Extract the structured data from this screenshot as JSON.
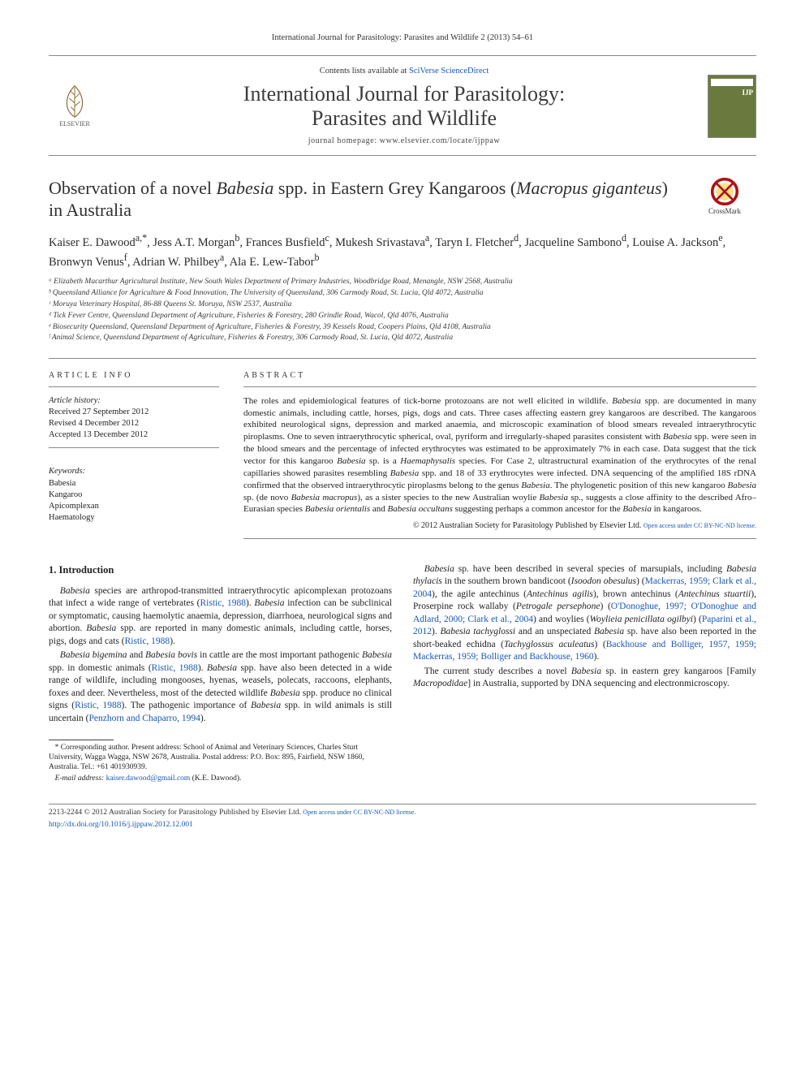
{
  "citation": "International Journal for Parasitology: Parasites and Wildlife 2 (2013) 54–61",
  "masthead": {
    "contents_prefix": "Contents lists available at ",
    "contents_link": "SciVerse ScienceDirect",
    "journal_name_line1": "International Journal for Parasitology:",
    "journal_name_line2": "Parasites and Wildlife",
    "homepage_prefix": "journal homepage: ",
    "homepage_url": "www.elsevier.com/locate/ijppaw",
    "publisher_label": "ELSEVIER",
    "cover_label": "IJP"
  },
  "crossmark_label": "CrossMark",
  "title": {
    "pre": "Observation of a novel ",
    "ital1": "Babesia",
    "mid": " spp. in Eastern Grey Kangaroos (",
    "ital2": "Macropus giganteus",
    "post": ") in Australia"
  },
  "authors_html": "Kaiser E. Dawood<sup>a,*</sup>, Jess A.T. Morgan<sup>b</sup>, Frances Busfield<sup>c</sup>, Mukesh Srivastava<sup>a</sup>, Taryn I. Fletcher<sup>d</sup>, Jacqueline Sambono<sup>d</sup>, Louise A. Jackson<sup>e</sup>, Bronwyn Venus<sup>f</sup>, Adrian W. Philbey<sup>a</sup>, Ala E. Lew-Tabor<sup>b</sup>",
  "affiliations": [
    "ᵃ Elizabeth Macarthur Agricultural Institute, New South Wales Department of Primary Industries, Woodbridge Road, Menangle, NSW 2568, Australia",
    "ᵇ Queensland Alliance for Agriculture & Food Innovation, The University of Queensland, 306 Carmody Road, St. Lucia, Qld 4072, Australia",
    "ᶜ Moruya Veterinary Hospital, 86-88 Queens St. Moruya, NSW 2537, Australia",
    "ᵈ Tick Fever Centre, Queensland Department of Agriculture, Fisheries & Forestry, 280 Grindle Road, Wacol, Qld 4076, Australia",
    "ᵉ Biosecurity Queensland, Queensland Department of Agriculture, Fisheries & Forestry, 39 Kessels Road, Coopers Plains, Qld 4108, Australia",
    "ᶠ Animal Science, Queensland Department of Agriculture, Fisheries & Forestry, 306 Carmody Road, St. Lucia, Qld 4072, Australia"
  ],
  "info": {
    "head": "ARTICLE INFO",
    "history_label": "Article history:",
    "received": "Received 27 September 2012",
    "revised": "Revised 4 December 2012",
    "accepted": "Accepted 13 December 2012",
    "keywords_label": "Keywords:",
    "keywords": [
      "Babesia",
      "Kangaroo",
      "Apicomplexan",
      "Haematology"
    ]
  },
  "abstract": {
    "head": "ABSTRACT",
    "text_html": "The roles and epidemiological features of tick-borne protozoans are not well elicited in wildlife. <span class=\"ital\">Babesia</span> spp. are documented in many domestic animals, including cattle, horses, pigs, dogs and cats. Three cases affecting eastern grey kangaroos are described. The kangaroos exhibited neurological signs, depression and marked anaemia, and microscopic examination of blood smears revealed intraerythrocytic piroplasms. One to seven intraerythrocytic spherical, oval, pyriform and irregularly-shaped parasites consistent with <span class=\"ital\">Babesia</span> spp. were seen in the blood smears and the percentage of infected erythrocytes was estimated to be approximately 7% in each case. Data suggest that the tick vector for this kangaroo <span class=\"ital\">Babesia</span> sp. is a <span class=\"ital\">Haemaphysalis</span> species. For Case 2, ultrastructural examination of the erythrocytes of the renal capillaries showed parasites resembling <span class=\"ital\">Babesia</span> spp. and 18 of 33 erythrocytes were infected. DNA sequencing of the amplified 18S rDNA confirmed that the observed intraerythrocytic piroplasms belong to the genus <span class=\"ital\">Babesia</span>. The phylogenetic position of this new kangaroo <span class=\"ital\">Babesia</span> sp. (de novo <span class=\"ital\">Babesia macropus</span>), as a sister species to the new Australian woylie <span class=\"ital\">Babesia</span> sp., suggests a close affinity to the described Afro–Eurasian species <span class=\"ital\">Babesia orientalis</span> and <span class=\"ital\">Babesia occultans</span> suggesting perhaps a common ancestor for the <span class=\"ital\">Babesia</span> in kangaroos.",
    "copyright": "© 2012 Australian Society for Parasitology Published by Elsevier Ltd.",
    "cc_prefix": "Open access under ",
    "cc_link": "CC BY-NC-ND license."
  },
  "body": {
    "h_intro": "1. Introduction",
    "p1_html": "<span class=\"ital\">Babesia</span> species are arthropod-transmitted intraerythrocytic apicomplexan protozoans that infect a wide range of vertebrates (<a href=\"#\">Ristic, 1988</a>). <span class=\"ital\">Babesia</span> infection can be subclinical or symptomatic, causing haemolytic anaemia, depression, diarrhoea, neurological signs and abortion. <span class=\"ital\">Babesia</span> spp. are reported in many domestic animals, including cattle, horses, pigs, dogs and cats (<a href=\"#\">Ristic, 1988</a>).",
    "p2_html": "<span class=\"ital\">Babesia bigemina</span> and <span class=\"ital\">Babesia bovis</span> in cattle are the most important pathogenic <span class=\"ital\">Babesia</span> spp. in domestic animals (<a href=\"#\">Ristic, 1988</a>). <span class=\"ital\">Babesia</span> spp. have also been detected in a wide range of wildlife, including mongooses, hyenas, weasels, polecats, raccoons, elephants, foxes and deer. Nevertheless, most of the detected wildlife <span class=\"ital\">Babesia</span> spp. produce no clinical signs (<a href=\"#\">Ristic, 1988</a>). The pathogenic importance of <span class=\"ital\">Babesia</span> spp. in wild animals is still uncertain (<a href=\"#\">Penzhorn and Chaparro, 1994</a>).",
    "p3_html": "<span class=\"ital\">Babesia</span> sp. have been described in several species of marsupials, including <span class=\"ital\">Babesia thylacis</span> in the southern brown bandicoot (<span class=\"ital\">Isoodon obesulus</span>) (<a href=\"#\">Mackerras, 1959; Clark et al., 2004</a>), the agile antechinus (<span class=\"ital\">Antechinus agilis</span>), brown antechinus (<span class=\"ital\">Antechinus stuartii</span>), Proserpine rock wallaby (<span class=\"ital\">Petrogale persephone</span>) (<a href=\"#\">O'Donoghue, 1997; O'Donoghue and Adlard, 2000; Clark et al., 2004</a>) and woylies (<span class=\"ital\">Woylieia penicillata ogilbyi</span>) (<a href=\"#\">Paparini et al., 2012</a>). <span class=\"ital\">Babesia tachyglossi</span> and an unspeciated <span class=\"ital\">Babesia</span> sp. have also been reported in the short-beaked echidna (<span class=\"ital\">Tachyglossus aculeatus</span>) (<a href=\"#\">Backhouse and Bolliger, 1957, 1959; Mackerras, 1959; Bolliger and Backhouse, 1960</a>).",
    "p4_html": "The current study describes a novel <span class=\"ital\">Babesia</span> sp. in eastern grey kangaroos [Family <span class=\"ital\">Macropodidae</span>] in Australia, supported by DNA sequencing and electronmicroscopy."
  },
  "footnote": {
    "corr_html": "* Corresponding author. Present address: School of Animal and Veterinary Sciences, Charles Sturt University, Wagga Wagga, NSW 2678, Australia. Postal address: P.O. Box: 895, Fairfield, NSW 1860, Australia. Tel.: +61 401930939.",
    "email_label": "E-mail address:",
    "email": "kaiser.dawood@gmail.com",
    "email_who": "(K.E. Dawood)."
  },
  "footer": {
    "issn_line": "2213-2244 © 2012 Australian Society for Parasitology Published by Elsevier Ltd.",
    "cc_prefix": "Open access under ",
    "cc_link": "CC BY-NC-ND license.",
    "doi": "http://dx.doi.org/10.1016/j.ijppaw.2012.12.001"
  },
  "colors": {
    "link": "#1856b5",
    "rule": "#888888",
    "cover_bg": "#6a7a3f",
    "crossmark_ring": "#b01116",
    "crossmark_inner": "#ffe089"
  }
}
